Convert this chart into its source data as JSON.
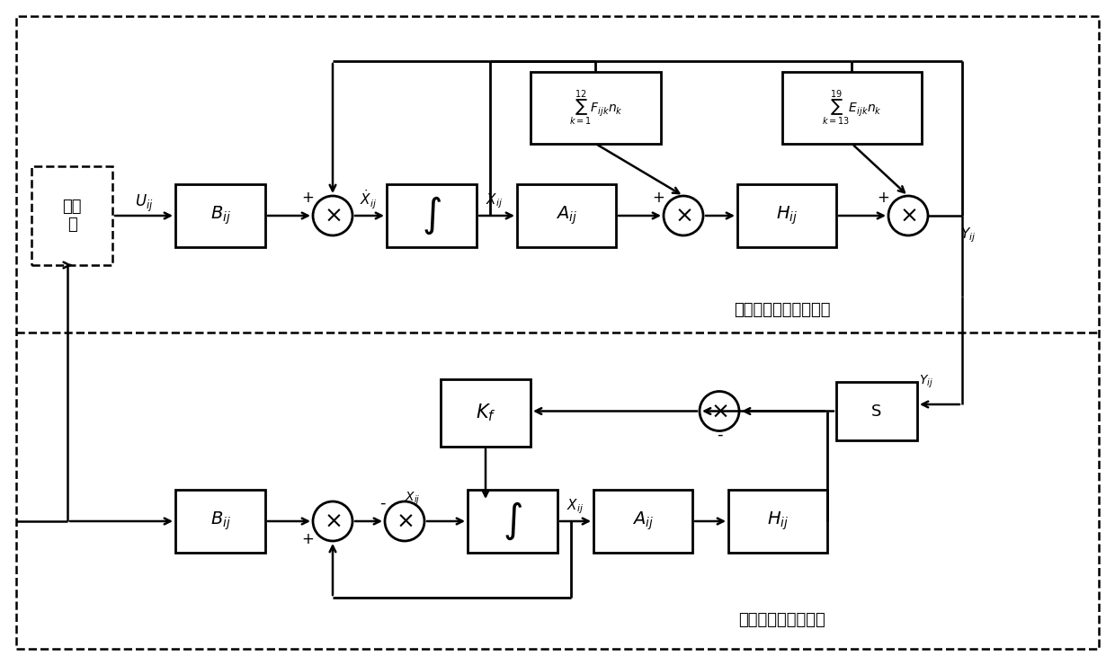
{
  "bg_color": "#ffffff",
  "lw": 2.0,
  "dlw": 1.8,
  "alw": 1.8,
  "fig_w": 12.4,
  "fig_h": 7.4,
  "font_chinese": "SimHei",
  "label_编队": "编队队形控制随机系统",
  "label_固定": "固定增益状态估计器",
  "label_控制器": "控制\n器",
  "label_Uij": "$U_{ij}$",
  "label_Bij": "$B_{ij}$",
  "label_int": "$\\int$",
  "label_Xdotij": "$\\dot{X}_{ij}$",
  "label_Xij": "$X_{ij}$",
  "label_Aij": "$A_{ij}$",
  "label_Hij": "$H_{ij}$",
  "label_Yij": "$Y_{ij}$",
  "label_sumF": "$\\displaystyle\\sum_{k=1}^{12}F_{ijk}n_k$",
  "label_sumE": "$\\displaystyle\\sum_{k=13}^{19}E_{ijk}n_k$",
  "label_Kf": "$K_f$",
  "label_S": "S",
  "label_Yij2": "$Y_{ij}$",
  "label_Xij_bot_in": "$\\dot{X}_{ij}$",
  "label_Xij_bot_out": "$X_{ij}$"
}
